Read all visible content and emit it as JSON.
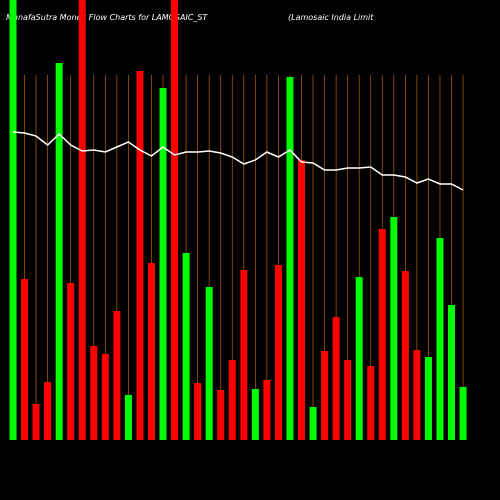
{
  "chart_data": {
    "type": "bar",
    "title": "MunafaSutra  Money Flow  Charts for LAMOSAIC_ST",
    "subtitle": "(Lamosaic India  Limit",
    "categories": [
      null,
      null,
      null,
      null,
      null,
      null,
      null,
      null,
      null,
      null,
      null,
      null,
      null,
      null,
      null,
      null,
      null,
      null,
      null,
      null,
      null,
      null,
      null,
      null,
      null,
      null,
      null,
      null,
      null,
      null,
      null,
      null,
      null,
      null,
      null,
      null,
      null,
      null,
      null,
      null
    ],
    "series": [
      {
        "name": "Money Flow",
        "colors": [
          "#00ff00",
          "#ff0000",
          "#ff0000",
          "#ff0000",
          "#00ff00",
          "#ff0000",
          "#ff0000",
          "#ff0000",
          "#ff0000",
          "#ff0000",
          "#00ff00",
          "#ff0000",
          "#ff0000",
          "#00ff00",
          "#ff0000",
          "#00ff00",
          "#ff0000",
          "#00ff00",
          "#ff0000",
          "#ff0000",
          "#ff0000",
          "#00ff00",
          "#ff0000",
          "#ff0000",
          "#00ff00",
          "#ff0000",
          "#00ff00",
          "#ff0000",
          "#ff0000",
          "#ff0000",
          "#00ff00",
          "#ff0000",
          "#ff0000",
          "#00ff00",
          "#ff0000",
          "#ff0000",
          "#00ff00",
          "#00ff00",
          "#00ff00",
          "#00ff00"
        ],
        "values": [
          440,
          161,
          36,
          58,
          377,
          157,
          440,
          94,
          86,
          129,
          45,
          369,
          177,
          352,
          440,
          187,
          57,
          153,
          50,
          80,
          170,
          51,
          60,
          175,
          363,
          280,
          33,
          89,
          123,
          80,
          163,
          74,
          211,
          223,
          169,
          90,
          83,
          202,
          135,
          53
        ]
      },
      {
        "name": "Price",
        "type": "line",
        "color": "#ffffff",
        "values": [
          308,
          307,
          304,
          295,
          306,
          295,
          289,
          290,
          288,
          293,
          298,
          290,
          284,
          293,
          285,
          288,
          288,
          289,
          287,
          283,
          276,
          280,
          288,
          283,
          290,
          278,
          277,
          270,
          270,
          272,
          272,
          273,
          265,
          265,
          263,
          257,
          261,
          256,
          256,
          250
        ]
      }
    ],
    "ylim": [
      0,
      440
    ]
  }
}
